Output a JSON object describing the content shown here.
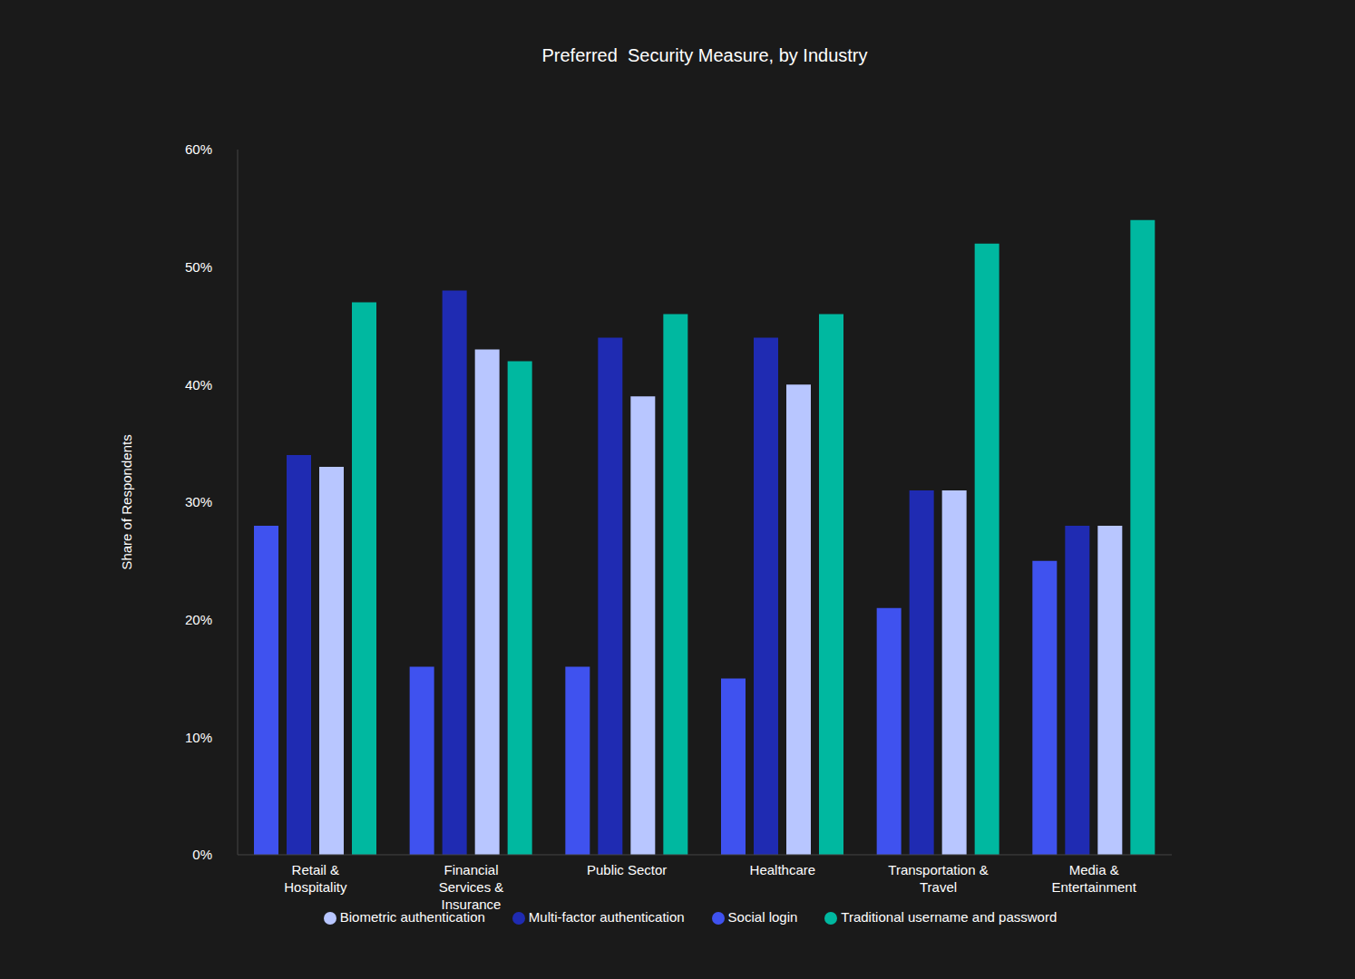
{
  "chart_data": {
    "type": "bar",
    "title": "Preferred  Security Measure, by Industry",
    "y_label": "Share of Respondents",
    "categories": [
      "Retail & Hospitality",
      "Financial Services & Insurance",
      "Public Sector",
      "Healthcare",
      "Transportation & Travel",
      "Media & Entertainment"
    ],
    "series": [
      {
        "name": "Social login",
        "color": "#3f52ef",
        "values": [
          28,
          16,
          16,
          15,
          21,
          25
        ]
      },
      {
        "name": "Multi-factor authentication",
        "color": "#1f2bb2",
        "values": [
          34,
          48,
          44,
          44,
          31,
          28
        ]
      },
      {
        "name": "Biometric authentication",
        "color": "#b8c6ff",
        "values": [
          33,
          43,
          39,
          40,
          31,
          28
        ]
      },
      {
        "name": "Traditional username and password",
        "color": "#00b8a0",
        "values": [
          47,
          42,
          46,
          46,
          52,
          54
        ]
      }
    ],
    "ylim": [
      0,
      60
    ],
    "yticks": [
      {
        "value": 0,
        "label": "0%"
      },
      {
        "value": 10,
        "label": "10%"
      },
      {
        "value": 20,
        "label": "20%"
      },
      {
        "value": 30,
        "label": "30%"
      },
      {
        "value": 40,
        "label": "40%"
      },
      {
        "value": 50,
        "label": "50%"
      },
      {
        "value": 60,
        "label": "60%"
      }
    ],
    "grid": false,
    "legend": "bottom"
  }
}
